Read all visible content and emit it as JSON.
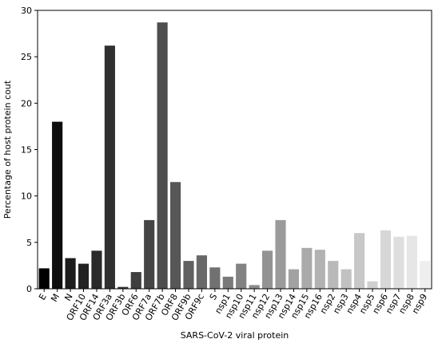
{
  "chart_data": {
    "type": "bar",
    "xlabel": "SARS-CoV-2 viral protein",
    "ylabel": "Percentage of host protein cout",
    "ylim": [
      0,
      30
    ],
    "yticks": [
      0,
      5,
      10,
      15,
      20,
      25,
      30
    ],
    "grid": false,
    "categories": [
      "E",
      "M",
      "N",
      "ORF10",
      "ORF14",
      "ORF3a",
      "ORF3b",
      "ORF6",
      "ORF7a",
      "ORF7b",
      "ORF8",
      "ORF9b",
      "ORF9c",
      "S",
      "nsp1",
      "nsp10",
      "nsp11",
      "nsp12",
      "nsp13",
      "nsp14",
      "nsp15",
      "nsp16",
      "nsp2",
      "nsp3",
      "nsp4",
      "nsp5",
      "nsp6",
      "nsp7",
      "nsp8",
      "nsp9"
    ],
    "values": [
      2.2,
      18.0,
      3.3,
      2.7,
      4.1,
      26.2,
      0.2,
      1.8,
      7.4,
      28.7,
      11.5,
      3.0,
      3.6,
      2.3,
      1.3,
      2.7,
      0.4,
      4.1,
      7.4,
      2.1,
      4.4,
      4.2,
      3.0,
      2.1,
      6.0,
      0.8,
      6.3,
      5.6,
      5.7,
      3.0
    ],
    "colors": [
      "#000000",
      "#0e0e0e",
      "#1c1c1c",
      "#222222",
      "#2a2a2a",
      "#303030",
      "#383838",
      "#3e3e3e",
      "#454545",
      "#4e4e4e",
      "#575757",
      "#606060",
      "#686868",
      "#717171",
      "#7a7a7a",
      "#828282",
      "#8b8b8b",
      "#939393",
      "#9b9b9b",
      "#a2a2a2",
      "#aaaaaa",
      "#b2b2b2",
      "#b9b9b9",
      "#c1c1c1",
      "#c8c8c8",
      "#d0d0d0",
      "#d7d7d7",
      "#dedede",
      "#e6e6e6",
      "#eeeeee"
    ]
  }
}
